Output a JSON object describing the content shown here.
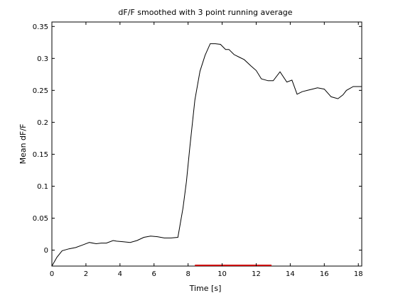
{
  "chart_data": {
    "type": "line",
    "title": "dF/F smoothed with 3 point running average",
    "xlabel": "Time [s]",
    "ylabel": "Mean dF/F",
    "xlim": [
      0,
      18.2
    ],
    "ylim": [
      -0.025,
      0.357
    ],
    "grid": false,
    "legend": "none",
    "xticks": [
      0,
      2,
      4,
      6,
      8,
      10,
      12,
      14,
      16,
      18
    ],
    "xtick_labels": [
      "0",
      "2",
      "4",
      "6",
      "8",
      "10",
      "12",
      "14",
      "16",
      "18"
    ],
    "yticks": [
      0,
      0.05,
      0.1,
      0.15,
      0.2,
      0.25,
      0.3,
      0.35
    ],
    "ytick_labels": [
      "0",
      "0.05",
      "0.1",
      "0.15",
      "0.2",
      "0.25",
      "0.3",
      "0.35"
    ],
    "series": [
      {
        "color": "#000000",
        "x": [
          0,
          0.3,
          0.6,
          1.0,
          1.4,
          1.8,
          2.2,
          2.6,
          2.9,
          3.2,
          3.6,
          3.8,
          4.2,
          4.6,
          5.0,
          5.4,
          5.8,
          6.2,
          6.6,
          7.0,
          7.4,
          7.7,
          7.9,
          8.1,
          8.4,
          8.7,
          9.0,
          9.3,
          9.6,
          9.9,
          10.2,
          10.4,
          10.7,
          11.0,
          11.3,
          11.7,
          12.0,
          12.3,
          12.7,
          13.0,
          13.4,
          13.8,
          14.1,
          14.4,
          14.7,
          15.0,
          15.3,
          15.6,
          16.0,
          16.4,
          16.8,
          17.1,
          17.3,
          17.7,
          18.2
        ],
        "values": [
          -0.025,
          -0.011,
          -0.001,
          0.002,
          0.004,
          0.008,
          0.012,
          0.01,
          0.011,
          0.011,
          0.015,
          0.014,
          0.013,
          0.012,
          0.015,
          0.02,
          0.022,
          0.021,
          0.019,
          0.019,
          0.02,
          0.066,
          0.107,
          0.16,
          0.235,
          0.28,
          0.305,
          0.323,
          0.323,
          0.322,
          0.314,
          0.314,
          0.306,
          0.302,
          0.298,
          0.288,
          0.281,
          0.268,
          0.265,
          0.265,
          0.279,
          0.263,
          0.266,
          0.244,
          0.248,
          0.25,
          0.252,
          0.254,
          0.252,
          0.24,
          0.237,
          0.243,
          0.25,
          0.256,
          0.256
        ]
      }
    ],
    "annotations": [
      {
        "type": "hbar",
        "color": "#cc0000",
        "x_start": 8.4,
        "x_end": 12.9,
        "y": -0.025
      }
    ]
  }
}
